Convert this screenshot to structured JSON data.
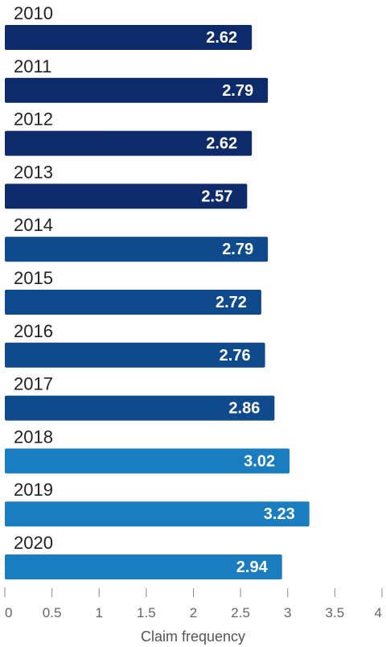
{
  "chart_data": {
    "type": "bar",
    "orientation": "horizontal",
    "categories": [
      "2010",
      "2011",
      "2012",
      "2013",
      "2014",
      "2015",
      "2016",
      "2017",
      "2018",
      "2019",
      "2020"
    ],
    "values": [
      2.62,
      2.79,
      2.62,
      2.57,
      2.79,
      2.72,
      2.76,
      2.86,
      3.02,
      3.23,
      2.94
    ],
    "value_labels": [
      "2.62",
      "2.79",
      "2.62",
      "2.57",
      "2.79",
      "2.72",
      "2.76",
      "2.86",
      "3.02",
      "3.23",
      "2.94"
    ],
    "xlabel": "Claim frequency",
    "xlim": [
      0,
      4
    ],
    "x_ticks": [
      0,
      0.5,
      1,
      1.5,
      2,
      2.5,
      3,
      3.5,
      4
    ],
    "x_tick_labels": [
      "0",
      "0.5",
      "1",
      "1.5",
      "2",
      "2.5",
      "3",
      "3.5",
      "4"
    ],
    "grid": false,
    "colors": [
      "#0d2a6b",
      "#0d2a6b",
      "#0d2a6b",
      "#0d2a6b",
      "#0f4a8c",
      "#0f4a8c",
      "#0f4a8c",
      "#0f4a8c",
      "#1a7dc0",
      "#1a7dc0",
      "#1a7dc0"
    ]
  }
}
